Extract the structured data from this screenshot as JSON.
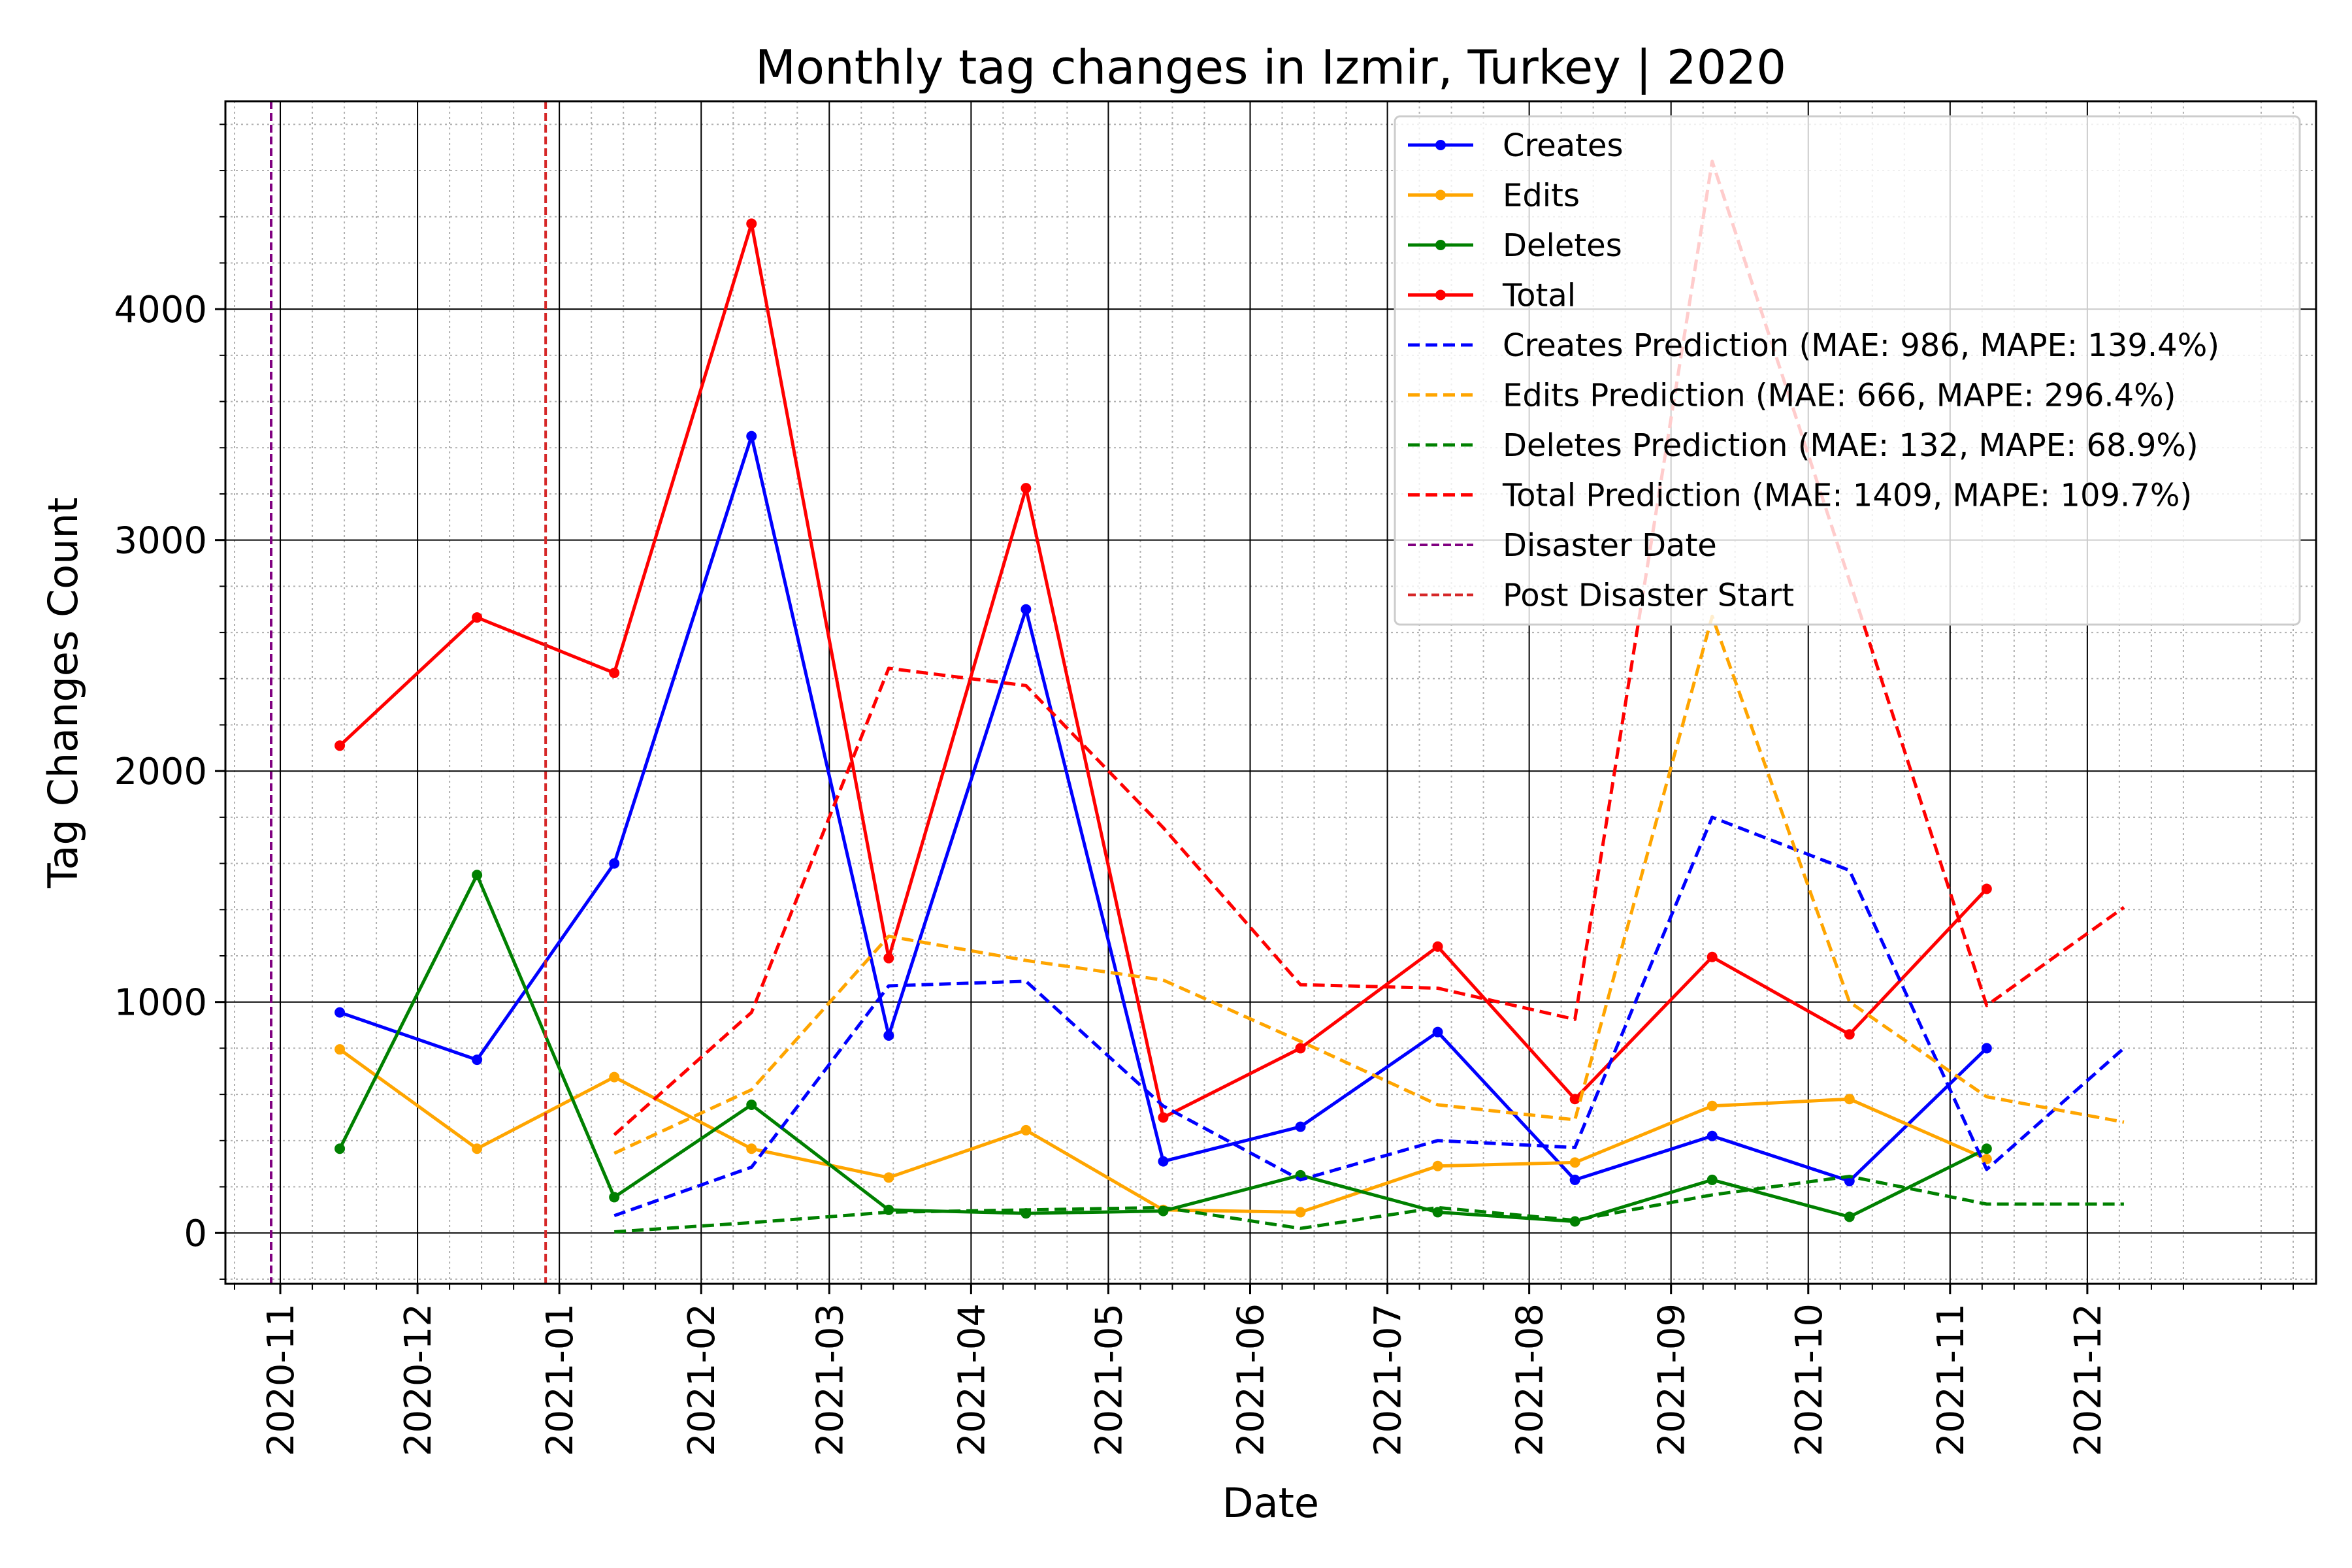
{
  "chart_data": {
    "type": "line",
    "title": "Monthly tag changes in Izmir, Turkey | 2020",
    "xlabel": "Date",
    "ylabel": "Tag Changes Count",
    "x_range": [
      "2020-10-20",
      "2022-01-20"
    ],
    "ylim": [
      -220,
      4900
    ],
    "x_ticks": [
      "2020-11",
      "2020-12",
      "2021-01",
      "2021-02",
      "2021-03",
      "2021-04",
      "2021-05",
      "2021-06",
      "2021-07",
      "2021-08",
      "2021-09",
      "2021-10",
      "2021-11",
      "2021-12"
    ],
    "y_ticks": [
      0,
      1000,
      2000,
      3000,
      4000
    ],
    "grid": true,
    "legend_position": "top-right",
    "series": [
      {
        "name": "Creates",
        "color": "#0000ff",
        "style": "solid-marker",
        "x": [
          "2020-11-14",
          "2020-12-14",
          "2021-01-13",
          "2021-02-12",
          "2021-03-14",
          "2021-04-13",
          "2021-05-13",
          "2021-06-12",
          "2021-07-12",
          "2021-08-11",
          "2021-09-10",
          "2021-10-10",
          "2021-11-09"
        ],
        "y": [
          955,
          750,
          1600,
          3450,
          855,
          2700,
          310,
          460,
          870,
          230,
          420,
          225,
          800
        ]
      },
      {
        "name": "Edits",
        "color": "#ffa500",
        "style": "solid-marker",
        "x": [
          "2020-11-14",
          "2020-12-14",
          "2021-01-13",
          "2021-02-12",
          "2021-03-14",
          "2021-04-13",
          "2021-05-13",
          "2021-06-12",
          "2021-07-12",
          "2021-08-11",
          "2021-09-10",
          "2021-10-10",
          "2021-11-09"
        ],
        "y": [
          795,
          365,
          675,
          365,
          240,
          445,
          100,
          90,
          290,
          305,
          550,
          580,
          320
        ]
      },
      {
        "name": "Deletes",
        "color": "#008000",
        "style": "solid-marker",
        "x": [
          "2020-11-14",
          "2020-12-14",
          "2021-01-13",
          "2021-02-12",
          "2021-03-14",
          "2021-04-13",
          "2021-05-13",
          "2021-06-12",
          "2021-07-12",
          "2021-08-11",
          "2021-09-10",
          "2021-10-10",
          "2021-11-09"
        ],
        "y": [
          365,
          1550,
          155,
          555,
          100,
          85,
          95,
          250,
          90,
          50,
          230,
          70,
          365
        ]
      },
      {
        "name": "Total",
        "color": "#ff0000",
        "style": "solid-marker",
        "x": [
          "2020-11-14",
          "2020-12-14",
          "2021-01-13",
          "2021-02-12",
          "2021-03-14",
          "2021-04-13",
          "2021-05-13",
          "2021-06-12",
          "2021-07-12",
          "2021-08-11",
          "2021-09-10",
          "2021-10-10",
          "2021-11-09"
        ],
        "y": [
          2110,
          2665,
          2425,
          4370,
          1190,
          3225,
          500,
          800,
          1240,
          580,
          1195,
          860,
          1490
        ]
      },
      {
        "name": "Creates Prediction (MAE: 986, MAPE: 139.4%)",
        "color": "#0000ff",
        "style": "dashed",
        "x": [
          "2021-01-13",
          "2021-02-12",
          "2021-03-14",
          "2021-04-13",
          "2021-05-13",
          "2021-06-12",
          "2021-07-12",
          "2021-08-11",
          "2021-09-10",
          "2021-10-10",
          "2021-11-09",
          "2021-12-09"
        ],
        "y": [
          75,
          285,
          1070,
          1090,
          550,
          230,
          400,
          370,
          1800,
          1570,
          275,
          800
        ]
      },
      {
        "name": "Edits Prediction (MAE: 666, MAPE: 296.4%)",
        "color": "#ffa500",
        "style": "dashed",
        "x": [
          "2021-01-13",
          "2021-02-12",
          "2021-03-14",
          "2021-04-13",
          "2021-05-13",
          "2021-06-12",
          "2021-07-12",
          "2021-08-11",
          "2021-09-10",
          "2021-10-10",
          "2021-11-09",
          "2021-12-09"
        ],
        "y": [
          345,
          620,
          1285,
          1180,
          1095,
          830,
          555,
          490,
          2670,
          1000,
          590,
          480
        ]
      },
      {
        "name": "Deletes Prediction (MAE: 132, MAPE: 68.9%)",
        "color": "#008000",
        "style": "dashed",
        "x": [
          "2021-01-13",
          "2021-02-12",
          "2021-03-14",
          "2021-04-13",
          "2021-05-13",
          "2021-06-12",
          "2021-07-12",
          "2021-08-11",
          "2021-09-10",
          "2021-10-10",
          "2021-11-09",
          "2021-12-09"
        ],
        "y": [
          5,
          45,
          90,
          100,
          110,
          20,
          110,
          55,
          165,
          245,
          125,
          125
        ]
      },
      {
        "name": "Total Prediction (MAE: 1409, MAPE: 109.7%)",
        "color": "#ff0000",
        "style": "dashed",
        "x": [
          "2021-01-13",
          "2021-02-12",
          "2021-03-14",
          "2021-04-13",
          "2021-05-13",
          "2021-06-12",
          "2021-07-12",
          "2021-08-11",
          "2021-09-10",
          "2021-10-10",
          "2021-11-09",
          "2021-12-09"
        ],
        "y": [
          425,
          955,
          2445,
          2370,
          1755,
          1075,
          1060,
          925,
          4640,
          2825,
          985,
          1410
        ]
      }
    ],
    "vertical_lines": [
      {
        "name": "Disaster Date",
        "color": "#800080",
        "x": "2020-10-30"
      },
      {
        "name": "Post Disaster Start",
        "color": "#d62728",
        "x": "2020-12-29"
      }
    ]
  }
}
